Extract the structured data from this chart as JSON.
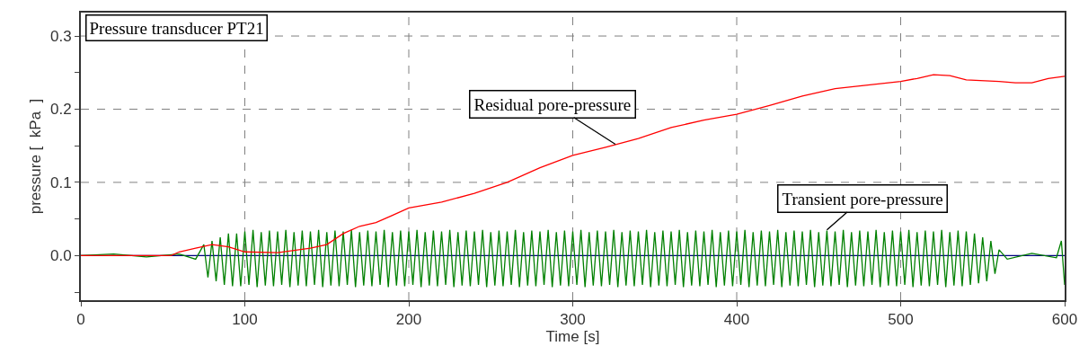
{
  "chart_data": {
    "type": "line",
    "title": "Pressure transducer PT21",
    "xlabel": "Time [s]",
    "ylabel": "pressure [  kPa  ]",
    "xlim": [
      0,
      600
    ],
    "xticks": [
      0,
      100,
      200,
      300,
      400,
      500,
      600
    ],
    "ylim": [
      -0.061,
      0.332
    ],
    "yticks": [
      {
        "value": -0.05,
        "label": null
      },
      {
        "value": 0.0,
        "label": "0.0"
      },
      {
        "value": 0.05,
        "label": null
      },
      0.1,
      {
        "value": 0.15,
        "label": null
      },
      0.2,
      {
        "value": 0.25,
        "label": null
      },
      0.3
    ],
    "grid": true,
    "marker": "none",
    "line_style": "solid",
    "annotations": [
      {
        "text": "Residual pore-pressure",
        "x": 326,
        "y": 0.152
      },
      {
        "text": "Transient pore-pressure",
        "x": 455,
        "y": 0.035
      }
    ],
    "series": [
      {
        "color": "#000080",
        "x": [
          0,
          600
        ],
        "values": [
          0,
          0
        ]
      },
      {
        "color": "#008000",
        "x": [
          0,
          20,
          40,
          60,
          70,
          75,
          77.5,
          80,
          82.5,
          85,
          87.5,
          90,
          92.5,
          95,
          97.5,
          100,
          102.5,
          105,
          107.5,
          110,
          112.5,
          115,
          117.5,
          120,
          122.5,
          125,
          127.5,
          130,
          132.5,
          135,
          137.5,
          140,
          142.5,
          145,
          147.5,
          150,
          152.5,
          155,
          157.5,
          160,
          162.5,
          165,
          167.5,
          170,
          172.5,
          175,
          177.5,
          180,
          182.5,
          185,
          187.5,
          190,
          192.5,
          195,
          197.5,
          200,
          202.5,
          205,
          207.5,
          210,
          212.5,
          215,
          217.5,
          220,
          222.5,
          225,
          227.5,
          230,
          232.5,
          235,
          237.5,
          240,
          242.5,
          245,
          247.5,
          250,
          252.5,
          255,
          257.5,
          260,
          262.5,
          265,
          267.5,
          270,
          272.5,
          275,
          277.5,
          280,
          282.5,
          285,
          287.5,
          290,
          292.5,
          295,
          297.5,
          300,
          302.5,
          305,
          307.5,
          310,
          312.5,
          315,
          317.5,
          320,
          322.5,
          325,
          327.5,
          330,
          332.5,
          335,
          337.5,
          340,
          342.5,
          345,
          347.5,
          350,
          352.5,
          355,
          357.5,
          360,
          362.5,
          365,
          367.5,
          370,
          372.5,
          375,
          377.5,
          380,
          382.5,
          385,
          387.5,
          390,
          392.5,
          395,
          397.5,
          400,
          402.5,
          405,
          407.5,
          410,
          412.5,
          415,
          417.5,
          420,
          422.5,
          425,
          427.5,
          430,
          432.5,
          435,
          437.5,
          440,
          442.5,
          445,
          447.5,
          450,
          452.5,
          455,
          457.5,
          460,
          462.5,
          465,
          467.5,
          470,
          472.5,
          475,
          477.5,
          480,
          482.5,
          485,
          487.5,
          490,
          492.5,
          495,
          497.5,
          500,
          502.5,
          505,
          507.5,
          510,
          512.5,
          515,
          517.5,
          520,
          522.5,
          525,
          527.5,
          530,
          532.5,
          535,
          537.5,
          540,
          542.5,
          545,
          547.5,
          550,
          552.5,
          555,
          557.5,
          560,
          565,
          580,
          595,
          598,
          600
        ],
        "values": [
          0,
          0.002,
          -0.002,
          0.002,
          -0.005,
          0.015,
          -0.03,
          0.02,
          -0.035,
          0.025,
          -0.04,
          0.03,
          -0.042,
          0.03,
          -0.042,
          0.033,
          -0.04,
          0.035,
          -0.043,
          0.032,
          -0.041,
          0.034,
          -0.042,
          0.033,
          -0.04,
          0.035,
          -0.043,
          0.032,
          -0.041,
          0.034,
          -0.042,
          0.033,
          -0.04,
          0.035,
          -0.043,
          0.032,
          -0.041,
          0.034,
          -0.042,
          0.033,
          -0.04,
          0.035,
          -0.043,
          0.032,
          -0.041,
          0.034,
          -0.042,
          0.033,
          -0.04,
          0.035,
          -0.043,
          0.032,
          -0.041,
          0.034,
          -0.042,
          0.033,
          -0.04,
          0.035,
          -0.043,
          0.032,
          -0.041,
          0.034,
          -0.042,
          0.033,
          -0.04,
          0.035,
          -0.043,
          0.032,
          -0.041,
          0.034,
          -0.042,
          0.033,
          -0.04,
          0.035,
          -0.043,
          0.032,
          -0.041,
          0.034,
          -0.042,
          0.033,
          -0.04,
          0.035,
          -0.043,
          0.032,
          -0.041,
          0.034,
          -0.042,
          0.033,
          -0.04,
          0.035,
          -0.043,
          0.032,
          -0.041,
          0.034,
          -0.042,
          0.033,
          -0.04,
          0.035,
          -0.043,
          0.032,
          -0.041,
          0.034,
          -0.042,
          0.033,
          -0.04,
          0.035,
          -0.043,
          0.032,
          -0.041,
          0.034,
          -0.042,
          0.033,
          -0.04,
          0.035,
          -0.043,
          0.032,
          -0.041,
          0.034,
          -0.042,
          0.033,
          -0.04,
          0.035,
          -0.043,
          0.032,
          -0.041,
          0.034,
          -0.042,
          0.033,
          -0.04,
          0.035,
          -0.043,
          0.032,
          -0.041,
          0.034,
          -0.042,
          0.033,
          -0.04,
          0.035,
          -0.043,
          0.032,
          -0.041,
          0.034,
          -0.042,
          0.033,
          -0.04,
          0.035,
          -0.043,
          0.032,
          -0.041,
          0.034,
          -0.042,
          0.033,
          -0.04,
          0.035,
          -0.043,
          0.032,
          -0.041,
          0.034,
          -0.042,
          0.033,
          -0.04,
          0.035,
          -0.043,
          0.032,
          -0.041,
          0.034,
          -0.042,
          0.033,
          -0.04,
          0.035,
          -0.043,
          0.032,
          -0.041,
          0.034,
          -0.042,
          0.033,
          -0.04,
          0.035,
          -0.043,
          0.032,
          -0.041,
          0.034,
          -0.042,
          0.033,
          -0.04,
          0.035,
          -0.043,
          0.032,
          -0.041,
          0.034,
          -0.042,
          0.033,
          -0.04,
          0.03,
          -0.038,
          0.025,
          -0.035,
          0.02,
          -0.025,
          0.008,
          -0.005,
          0.003,
          -0.003,
          0.02,
          -0.04
        ]
      },
      {
        "color": "#ff0000",
        "x": [
          0,
          55,
          60,
          70,
          80,
          90,
          100,
          120,
          140,
          150,
          160,
          170,
          180,
          190,
          200,
          220,
          240,
          260,
          280,
          300,
          320,
          340,
          360,
          380,
          400,
          420,
          440,
          460,
          480,
          500,
          510,
          520,
          530,
          540,
          560,
          570,
          580,
          590,
          600
        ],
        "values": [
          0,
          0,
          0.005,
          0.01,
          0.015,
          0.012,
          0.005,
          0.004,
          0.01,
          0.015,
          0.03,
          0.04,
          0.045,
          0.055,
          0.065,
          0.073,
          0.085,
          0.1,
          0.12,
          0.137,
          0.148,
          0.16,
          0.175,
          0.185,
          0.193,
          0.205,
          0.218,
          0.228,
          0.233,
          0.238,
          0.242,
          0.247,
          0.246,
          0.24,
          0.238,
          0.236,
          0.236,
          0.242,
          0.245
        ]
      }
    ]
  }
}
